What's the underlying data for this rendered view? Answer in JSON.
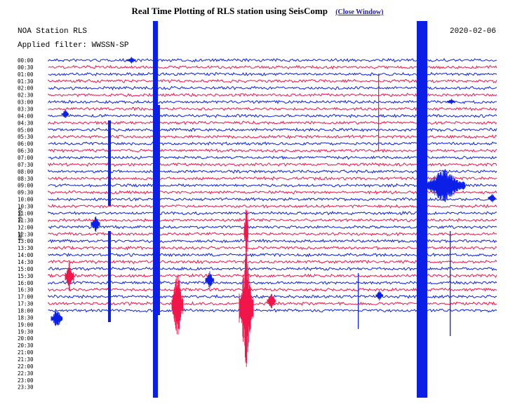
{
  "header": {
    "title": "Real Time Plotting of RLS station using SeisComp",
    "close_link": "(Close Window)"
  },
  "plot": {
    "station_label": "NOA Station RLS",
    "filter_label": "Applied filter: WWSSN-SP",
    "date": "2020-02-06",
    "channel_label": "HHZ - 50000",
    "colors": {
      "blue": "#0b1fe6",
      "red": "#f2154a"
    },
    "time_labels": [
      "00:00",
      "00:30",
      "01:00",
      "01:30",
      "02:00",
      "02:30",
      "03:00",
      "03:30",
      "04:00",
      "04:30",
      "05:00",
      "05:30",
      "06:00",
      "06:30",
      "07:00",
      "07:30",
      "08:00",
      "08:30",
      "09:00",
      "09:30",
      "10:00",
      "10:30",
      "11:00",
      "11:30",
      "12:00",
      "12:30",
      "13:00",
      "13:30",
      "14:00",
      "14:30",
      "15:00",
      "15:30",
      "16:00",
      "16:30",
      "17:00",
      "17:30",
      "18:00",
      "18:30",
      "19:00",
      "19:30",
      "20:00",
      "20:30",
      "21:00",
      "21:30",
      "22:00",
      "22:30",
      "23:00",
      "23:30"
    ],
    "active_trace_count": 37
  }
}
